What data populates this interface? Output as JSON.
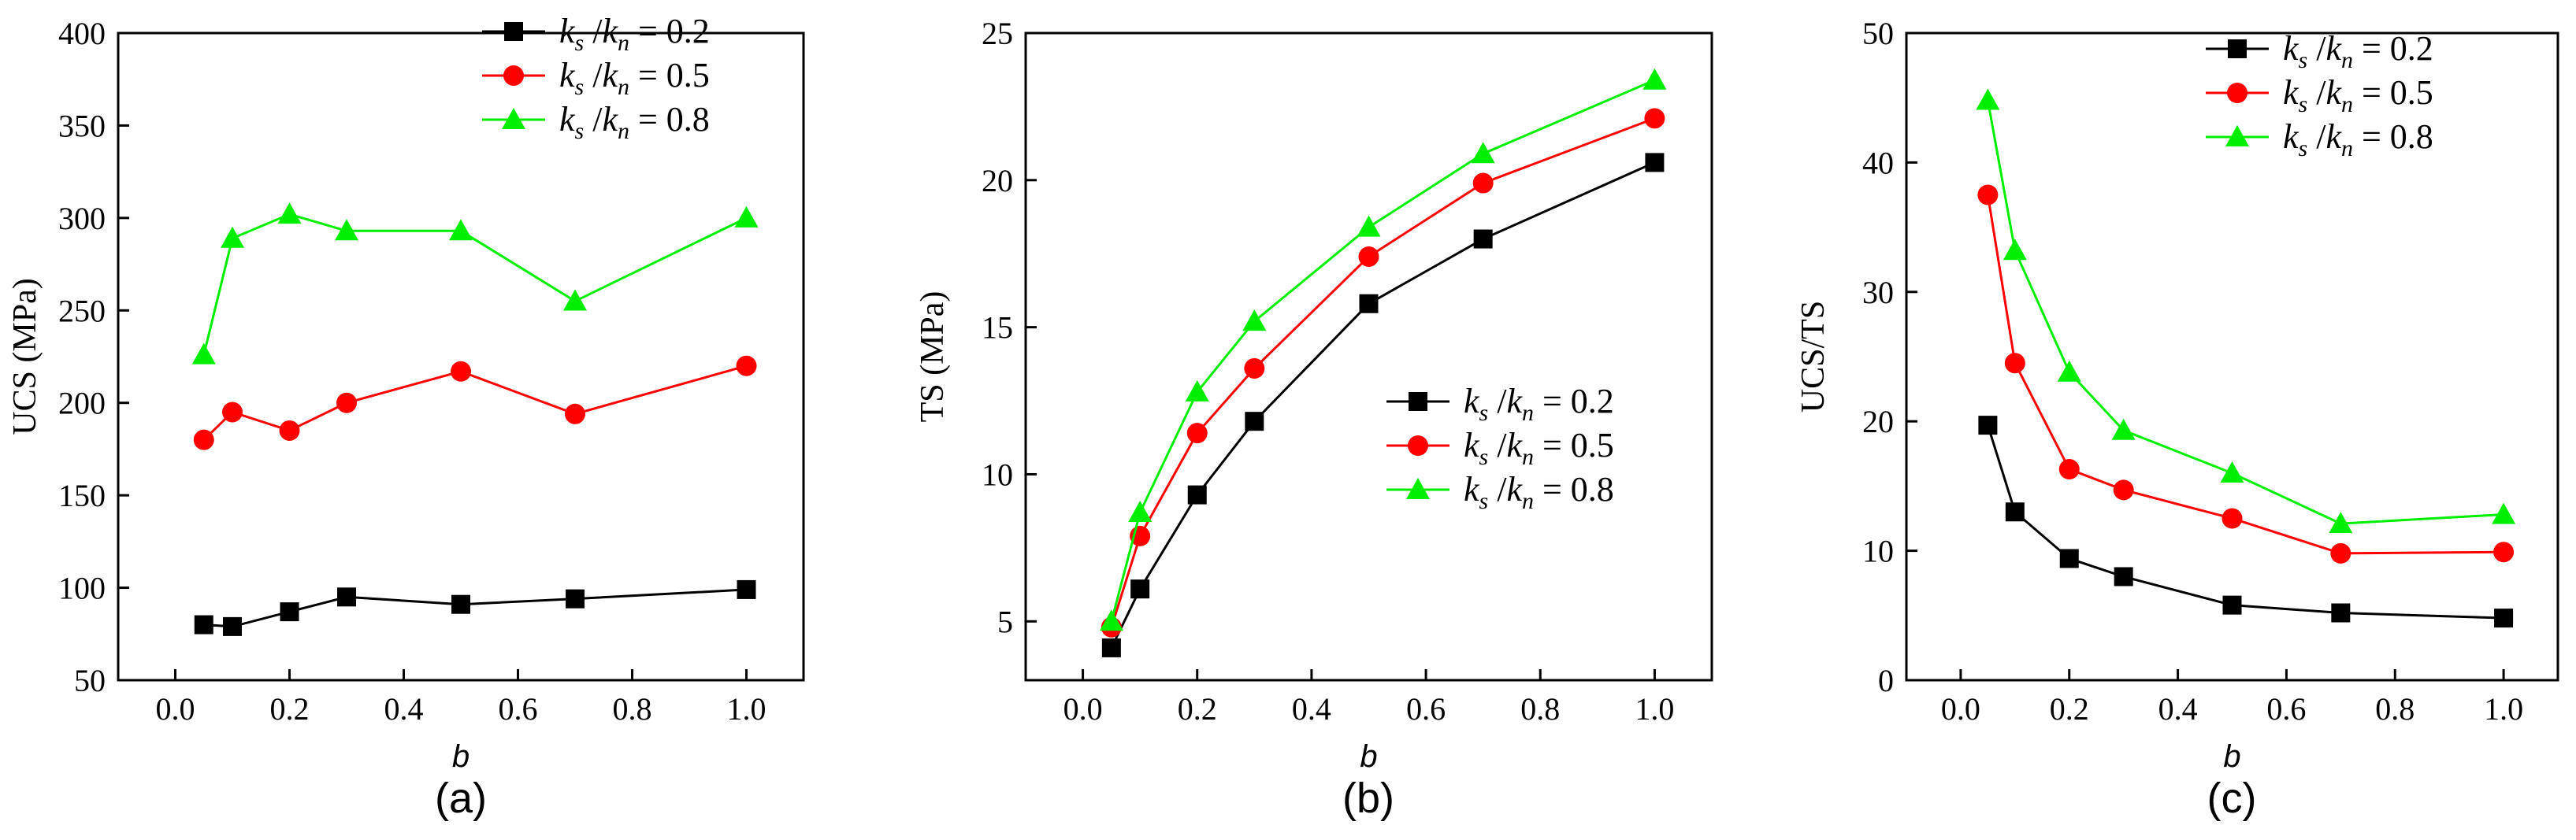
{
  "chart_data": [
    {
      "type": "line",
      "caption": "(a)",
      "xlabel": "b",
      "ylabel": "UCS (MPa)",
      "xlim": [
        -0.1,
        1.1
      ],
      "ylim": [
        50,
        400
      ],
      "xticks": [
        0.0,
        0.2,
        0.4,
        0.6,
        0.8,
        1.0
      ],
      "xtick_labels": [
        "0.0",
        "0.2",
        "0.4",
        "0.6",
        "0.8",
        "1.0"
      ],
      "yticks": [
        50,
        100,
        150,
        200,
        250,
        300,
        350,
        400
      ],
      "ytick_labels": [
        "50",
        "100",
        "150",
        "200",
        "250",
        "300",
        "350",
        "400"
      ],
      "legend_position": "top-right",
      "x": [
        0.05,
        0.1,
        0.2,
        0.3,
        0.5,
        0.7,
        1.0
      ],
      "series": [
        {
          "name": "ks/kn = 0.2",
          "ratio": "0.2",
          "marker": "square",
          "color": "#000000",
          "values": [
            80,
            79,
            87,
            95,
            91,
            94,
            99
          ]
        },
        {
          "name": "ks/kn = 0.5",
          "ratio": "0.5",
          "marker": "circle",
          "color": "#ff0000",
          "values": [
            180,
            195,
            185,
            200,
            217,
            194,
            220
          ]
        },
        {
          "name": "ks/kn = 0.8",
          "ratio": "0.8",
          "marker": "triangle",
          "color": "#00ee00",
          "values": [
            226,
            289,
            302,
            293,
            293,
            255,
            300
          ]
        }
      ]
    },
    {
      "type": "line",
      "caption": "(b)",
      "xlabel": "b",
      "ylabel": "TS (MPa)",
      "xlim": [
        -0.1,
        1.1
      ],
      "ylim": [
        3,
        25
      ],
      "xticks": [
        0.0,
        0.2,
        0.4,
        0.6,
        0.8,
        1.0
      ],
      "xtick_labels": [
        "0.0",
        "0.2",
        "0.4",
        "0.6",
        "0.8",
        "1.0"
      ],
      "yticks": [
        5,
        10,
        15,
        20,
        25
      ],
      "ytick_labels": [
        "5",
        "10",
        "15",
        "20",
        "25"
      ],
      "legend_position": "center-right",
      "x": [
        0.05,
        0.1,
        0.2,
        0.3,
        0.5,
        0.7,
        1.0
      ],
      "series": [
        {
          "name": "ks/kn = 0.2",
          "ratio": "0.2",
          "marker": "square",
          "color": "#000000",
          "values": [
            4.1,
            6.1,
            9.3,
            11.8,
            15.8,
            18.0,
            20.6
          ]
        },
        {
          "name": "ks/kn = 0.5",
          "ratio": "0.5",
          "marker": "circle",
          "color": "#ff0000",
          "values": [
            4.8,
            7.9,
            11.4,
            13.6,
            17.4,
            19.9,
            22.1
          ]
        },
        {
          "name": "ks/kn = 0.8",
          "ratio": "0.8",
          "marker": "triangle",
          "color": "#00ee00",
          "values": [
            5.0,
            8.7,
            12.8,
            15.2,
            18.4,
            20.9,
            23.4
          ]
        }
      ]
    },
    {
      "type": "line",
      "caption": "(c)",
      "xlabel": "b",
      "ylabel": "UCS/TS",
      "xlim": [
        -0.1,
        1.1
      ],
      "ylim": [
        0,
        50
      ],
      "xticks": [
        0.0,
        0.2,
        0.4,
        0.6,
        0.8,
        1.0
      ],
      "xtick_labels": [
        "0.0",
        "0.2",
        "0.4",
        "0.6",
        "0.8",
        "1.0"
      ],
      "yticks": [
        0,
        10,
        20,
        30,
        40,
        50
      ],
      "ytick_labels": [
        "0",
        "10",
        "20",
        "30",
        "40",
        "50"
      ],
      "legend_position": "top-right",
      "x": [
        0.05,
        0.1,
        0.2,
        0.3,
        0.5,
        0.7,
        1.0
      ],
      "series": [
        {
          "name": "ks/kn = 0.2",
          "ratio": "0.2",
          "marker": "square",
          "color": "#000000",
          "values": [
            19.7,
            13.0,
            9.4,
            8.0,
            5.8,
            5.2,
            4.8
          ]
        },
        {
          "name": "ks/kn = 0.5",
          "ratio": "0.5",
          "marker": "circle",
          "color": "#ff0000",
          "values": [
            37.5,
            24.5,
            16.3,
            14.7,
            12.5,
            9.8,
            9.9
          ]
        },
        {
          "name": "ks/kn = 0.8",
          "ratio": "0.8",
          "marker": "triangle",
          "color": "#00ee00",
          "values": [
            44.8,
            33.2,
            23.8,
            19.3,
            16.0,
            12.1,
            12.8
          ]
        }
      ]
    }
  ]
}
